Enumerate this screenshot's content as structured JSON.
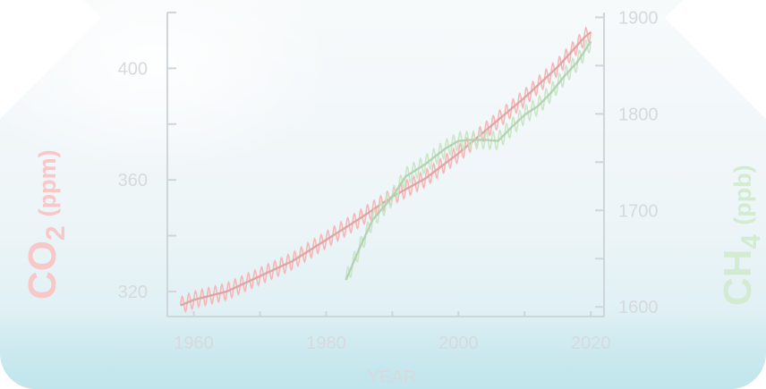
{
  "chart_data": {
    "type": "line",
    "xlabel": "YEAR",
    "xlim": [
      1956,
      2022
    ],
    "x_ticks": [
      1960,
      1980,
      2000,
      2020
    ],
    "y_left": {
      "label_main": "CO",
      "label_sub": "2",
      "label_unit": "(ppm)",
      "lim": [
        311,
        420
      ],
      "ticks": [
        320,
        360,
        400
      ],
      "minor_ticks": [
        340,
        380,
        420
      ],
      "color": "#f7b3b3"
    },
    "y_right": {
      "label_main": "CH",
      "label_sub": "4",
      "label_unit": "(ppb)",
      "lim": [
        1590,
        1905
      ],
      "ticks": [
        1600,
        1700,
        1800,
        1900
      ],
      "minor_ticks": [
        1650,
        1750,
        1850
      ],
      "color": "#c6e6c4"
    },
    "axis_color": "#cfd6d9",
    "tick_label_color": "#d6dadc",
    "series": [
      {
        "name": "",
        "axis": "left",
        "seasonal_amplitude": 3,
        "points": [
          [
            1958,
            315
          ],
          [
            1960,
            317
          ],
          [
            1965,
            320
          ],
          [
            1970,
            325.5
          ],
          [
            1975,
            331
          ],
          [
            1980,
            338.5
          ],
          [
            1985,
            346
          ],
          [
            1990,
            354
          ],
          [
            1995,
            360.5
          ],
          [
            2000,
            369.5
          ],
          [
            2005,
            379.5
          ],
          [
            2010,
            389.5
          ],
          [
            2015,
            400.5
          ],
          [
            2019,
            411
          ],
          [
            2020,
            413
          ]
        ]
      },
      {
        "name": "",
        "axis": "right",
        "seasonal_amplitude": 9,
        "points": [
          [
            1983,
            1628
          ],
          [
            1985,
            1660
          ],
          [
            1987,
            1690
          ],
          [
            1990,
            1714
          ],
          [
            1992,
            1735
          ],
          [
            1995,
            1748
          ],
          [
            1998,
            1764
          ],
          [
            2000,
            1772
          ],
          [
            2002,
            1773
          ],
          [
            2004,
            1773
          ],
          [
            2006,
            1772
          ],
          [
            2008,
            1786
          ],
          [
            2010,
            1799
          ],
          [
            2012,
            1808
          ],
          [
            2014,
            1822
          ],
          [
            2016,
            1839
          ],
          [
            2018,
            1854
          ],
          [
            2020,
            1875
          ]
        ]
      }
    ]
  }
}
